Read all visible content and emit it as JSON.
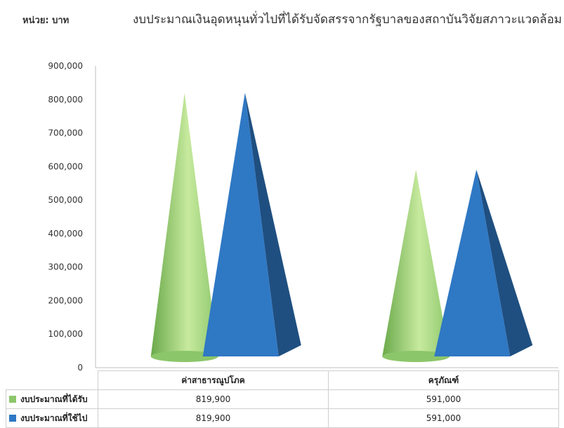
{
  "unit_label": "หน่วย: บาท",
  "chart_data": {
    "type": "bar",
    "title": "งบประมาณเงินอุดหนุนทั่วไปที่ได้รับจัดสรรจากรัฐบาลของสถาบันวิจัยสภาวะแวดล้อม",
    "categories": [
      "ค่าสาธารณูปโภค",
      "ครุภัณฑ์"
    ],
    "series": [
      {
        "name": "งบประมาณที่ได้รับ",
        "values": [
          819900,
          591000
        ],
        "color": "#8cc66a",
        "shape": "cone"
      },
      {
        "name": "งบประมาณที่ใช้ไป",
        "values": [
          819900,
          591000
        ],
        "color": "#2f78c4",
        "shape": "pyramid"
      }
    ],
    "value_labels": [
      [
        "819,900",
        "591,000"
      ],
      [
        "819,900",
        "591,000"
      ]
    ],
    "ylim": [
      0,
      900000
    ],
    "yticks": [
      "0",
      "100,000",
      "200,000",
      "300,000",
      "400,000",
      "500,000",
      "600,000",
      "700,000",
      "800,000",
      "900,000"
    ],
    "grid": false,
    "legend": "data-table-bottom"
  }
}
